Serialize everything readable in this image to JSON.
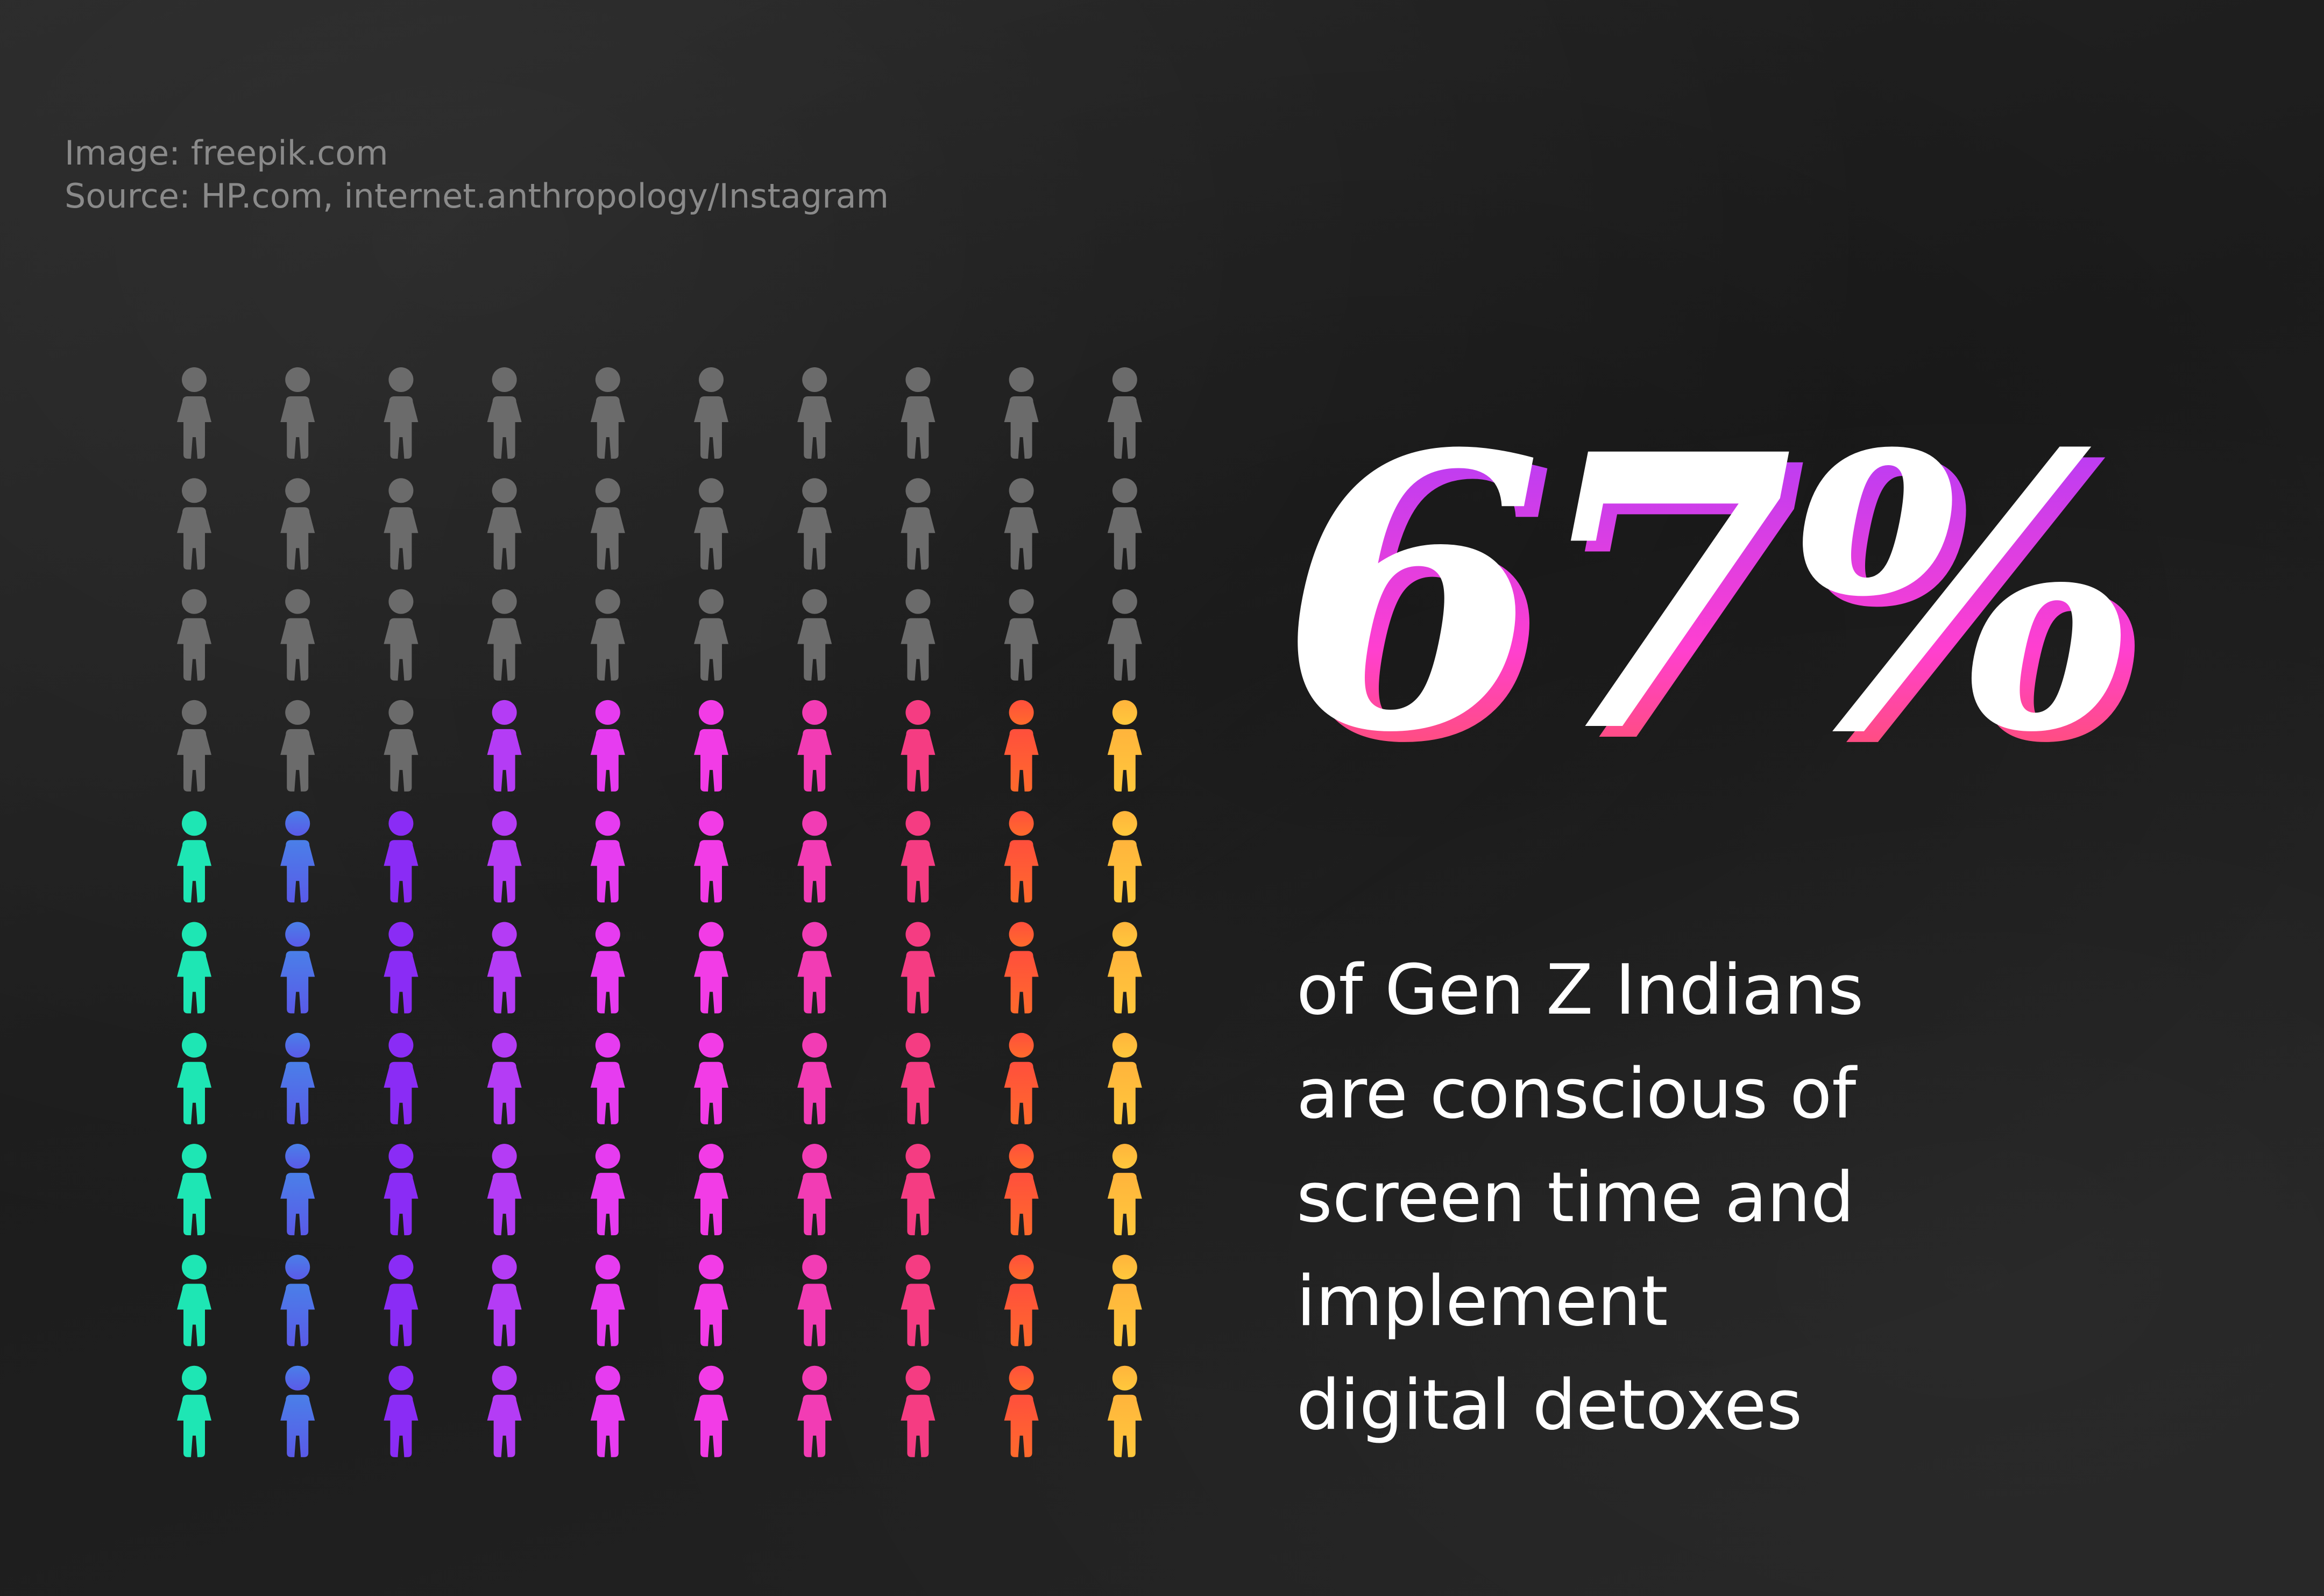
{
  "credits": {
    "image": "Image: freepik.com",
    "source": "Source: HP.com, internet.anthropology/Instagram"
  },
  "headline": {
    "value": "67%",
    "colors": {
      "fill": "#ffffff",
      "shadow_top": "#a43cff",
      "shadow_mid": "#ff3fd0",
      "shadow_bottom": "#ff5a3c"
    }
  },
  "description": {
    "lines": [
      "of Gen Z Indians",
      "are conscious of",
      "screen time and",
      "implement",
      "digital detoxes"
    ]
  },
  "chart_data": {
    "type": "pictogram",
    "rows": 10,
    "columns": 10,
    "total": 100,
    "highlighted": 67,
    "inactive_color": "#6b6b6b",
    "column_colors": [
      "#1ee6b4",
      "#4a7fe8",
      "#8a2cf5",
      "#b43cf5",
      "#e63cf0",
      "#f23ce6",
      "#f23cb4",
      "#f53c82",
      "#ff4f3c",
      "#ffb43c"
    ],
    "column_gradient_ends": [
      "#1ee6b4",
      "#5a5ae8",
      "#8a2cf5",
      "#b43cf5",
      "#e63cf0",
      "#f23ce6",
      "#f23cb4",
      "#f53c82",
      "#ff6a2c",
      "#ffc83c"
    ]
  }
}
